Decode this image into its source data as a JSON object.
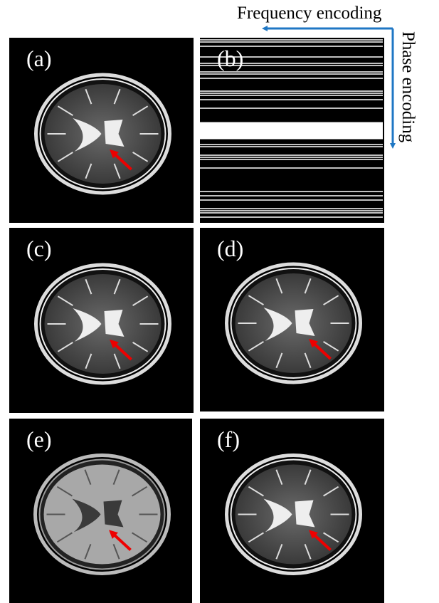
{
  "figure": {
    "frequency_label": "Frequency encoding",
    "phase_label": "Phase encoding",
    "panels": [
      {
        "label": "(a)"
      },
      {
        "label": "(b)"
      },
      {
        "label": "(c)"
      },
      {
        "label": "(d)"
      },
      {
        "label": "(e)"
      },
      {
        "label": "(f)"
      }
    ]
  }
}
